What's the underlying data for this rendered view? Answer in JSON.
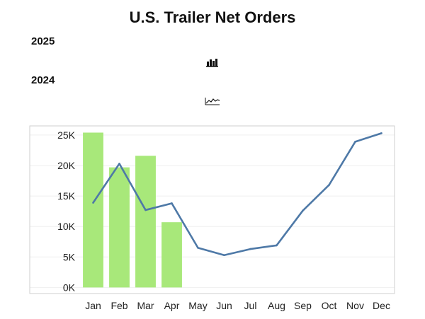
{
  "chart_data": {
    "type": "bar+line",
    "title": "U.S. Trailer Net Orders",
    "categories": [
      "Jan",
      "Feb",
      "Mar",
      "Apr",
      "May",
      "Jun",
      "Jul",
      "Aug",
      "Sep",
      "Oct",
      "Nov",
      "Dec"
    ],
    "series": [
      {
        "name": "2025",
        "type": "bar",
        "color": "#a8e87a",
        "values": [
          25400,
          19700,
          21600,
          10700,
          null,
          null,
          null,
          null,
          null,
          null,
          null,
          null
        ]
      },
      {
        "name": "2024",
        "type": "line",
        "color": "#4e79a7",
        "values": [
          13900,
          20300,
          12700,
          13800,
          6500,
          5300,
          6300,
          6900,
          12600,
          16800,
          23900,
          25300
        ]
      }
    ],
    "yticks": [
      0,
      5000,
      10000,
      15000,
      20000,
      25000
    ],
    "ytick_labels": [
      "0K",
      "5K",
      "10K",
      "15K",
      "20K",
      "25K"
    ],
    "ylim": [
      -1000,
      26500
    ],
    "xlabel": "",
    "ylabel": ""
  },
  "legend": [
    {
      "label": "2025",
      "icon": "bar-chart-icon"
    },
    {
      "label": "2024",
      "icon": "line-chart-icon"
    }
  ]
}
